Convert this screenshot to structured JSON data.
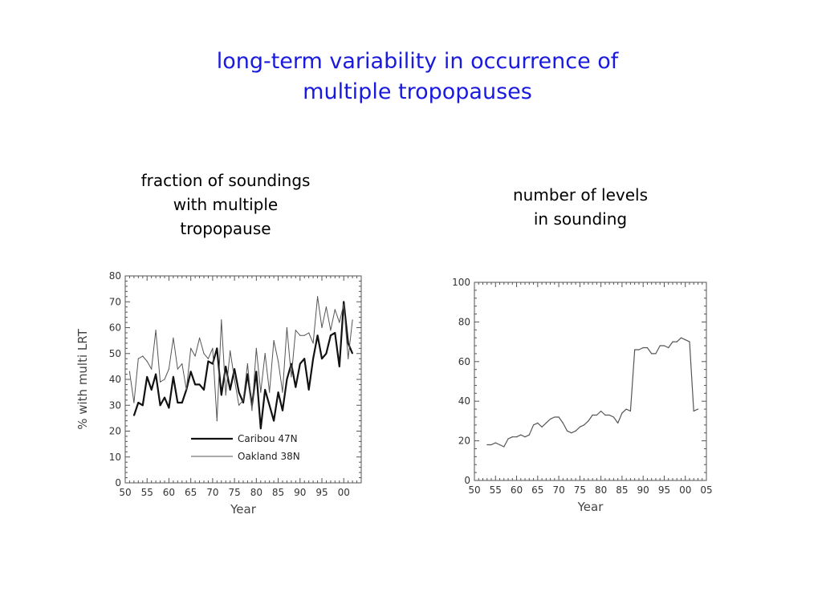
{
  "slide": {
    "title_line1": "long-term variability in occurrence of",
    "title_line2": "multiple tropopauses",
    "left_caption": [
      "fraction of soundings",
      "with multiple",
      "tropopause"
    ],
    "right_caption": [
      "number of levels",
      "in sounding"
    ]
  },
  "colors": {
    "title": "#1a1adf"
  },
  "chart_data": [
    {
      "type": "line",
      "title": "",
      "xlabel": "Year",
      "ylabel": "% with multi LRT",
      "xlim": [
        1950,
        2004
      ],
      "ylim": [
        0,
        80
      ],
      "x_ticks": [
        1950,
        1955,
        1960,
        1965,
        1970,
        1975,
        1980,
        1985,
        1990,
        1995,
        2000
      ],
      "x_tick_labels": [
        "50",
        "55",
        "60",
        "65",
        "70",
        "75",
        "80",
        "85",
        "90",
        "95",
        "00"
      ],
      "y_ticks": [
        0,
        10,
        20,
        30,
        40,
        50,
        60,
        70,
        80
      ],
      "y_tick_labels": [
        "0",
        "10",
        "20",
        "30",
        "40",
        "50",
        "60",
        "70",
        "80"
      ],
      "legend_position": "bottom-center",
      "grid": false,
      "series": [
        {
          "name": "Caribou 47N",
          "style": "thick",
          "x": [
            1952,
            1953,
            1954,
            1955,
            1956,
            1957,
            1958,
            1959,
            1960,
            1961,
            1962,
            1963,
            1964,
            1965,
            1966,
            1967,
            1968,
            1969,
            1970,
            1971,
            1972,
            1973,
            1974,
            1975,
            1976,
            1977,
            1978,
            1979,
            1980,
            1981,
            1982,
            1983,
            1984,
            1985,
            1986,
            1987,
            1988,
            1989,
            1990,
            1991,
            1992,
            1993,
            1994,
            1995,
            1996,
            1997,
            1998,
            1999,
            2000,
            2001,
            2002
          ],
          "values": [
            26,
            31,
            30,
            41,
            36,
            42,
            30,
            33,
            29,
            41,
            31,
            31,
            36,
            43,
            38,
            38,
            36,
            47,
            46,
            52,
            34,
            45,
            36,
            44,
            35,
            31,
            42,
            30,
            43,
            21,
            36,
            30,
            24,
            35,
            28,
            40,
            46,
            37,
            46,
            48,
            36,
            48,
            57,
            48,
            50,
            57,
            58,
            45,
            70,
            54,
            50
          ]
        },
        {
          "name": "Oakland 38N",
          "style": "thin",
          "x": [
            1951,
            1952,
            1953,
            1954,
            1955,
            1956,
            1957,
            1958,
            1959,
            1960,
            1961,
            1962,
            1963,
            1964,
            1965,
            1966,
            1967,
            1968,
            1969,
            1970,
            1971,
            1972,
            1973,
            1974,
            1975,
            1976,
            1977,
            1978,
            1979,
            1980,
            1981,
            1982,
            1983,
            1984,
            1985,
            1986,
            1987,
            1988,
            1989,
            1990,
            1991,
            1992,
            1993,
            1994,
            1995,
            1996,
            1997,
            1998,
            1999,
            2000,
            2001,
            2002
          ],
          "values": [
            43,
            31,
            48,
            49,
            47,
            44,
            59,
            39,
            40,
            44,
            56,
            44,
            46,
            36,
            52,
            49,
            56,
            50,
            48,
            52,
            24,
            63,
            34,
            51,
            40,
            30,
            32,
            46,
            28,
            52,
            35,
            50,
            35,
            55,
            47,
            35,
            60,
            41,
            59,
            57,
            57,
            58,
            54,
            72,
            60,
            68,
            59,
            67,
            62,
            69,
            48,
            63
          ]
        }
      ]
    },
    {
      "type": "line",
      "title": "",
      "xlabel": "Year",
      "ylabel": "",
      "xlim": [
        1950,
        2005
      ],
      "ylim": [
        0,
        100
      ],
      "x_ticks": [
        1950,
        1955,
        1960,
        1965,
        1970,
        1975,
        1980,
        1985,
        1990,
        1995,
        2000,
        2005
      ],
      "x_tick_labels": [
        "50",
        "55",
        "60",
        "65",
        "70",
        "75",
        "80",
        "85",
        "90",
        "95",
        "00",
        "05"
      ],
      "y_ticks": [
        0,
        20,
        40,
        60,
        80,
        100
      ],
      "y_tick_labels": [
        "0",
        "20",
        "40",
        "60",
        "80",
        "100"
      ],
      "grid": false,
      "series": [
        {
          "x": [
            1953,
            1954,
            1955,
            1956,
            1957,
            1958,
            1959,
            1960,
            1961,
            1962,
            1963,
            1964,
            1965,
            1966,
            1967,
            1968,
            1969,
            1970,
            1971,
            1972,
            1973,
            1974,
            1975,
            1976,
            1977,
            1978,
            1979,
            1980,
            1981,
            1982,
            1983,
            1984,
            1985,
            1986,
            1987,
            1988,
            1989,
            1990,
            1991,
            1992,
            1993,
            1994,
            1995,
            1996,
            1997,
            1998,
            1999,
            2000,
            2001,
            2002,
            2003
          ],
          "values": [
            18,
            18,
            19,
            18,
            17,
            21,
            22,
            22,
            23,
            22,
            23,
            28,
            29,
            27,
            29,
            31,
            32,
            32,
            29,
            25,
            24,
            25,
            27,
            28,
            30,
            33,
            33,
            35,
            33,
            33,
            32,
            29,
            34,
            36,
            35,
            66,
            66,
            67,
            67,
            64,
            64,
            68,
            68,
            67,
            70,
            70,
            72,
            71,
            70,
            35,
            36
          ]
        }
      ]
    }
  ]
}
